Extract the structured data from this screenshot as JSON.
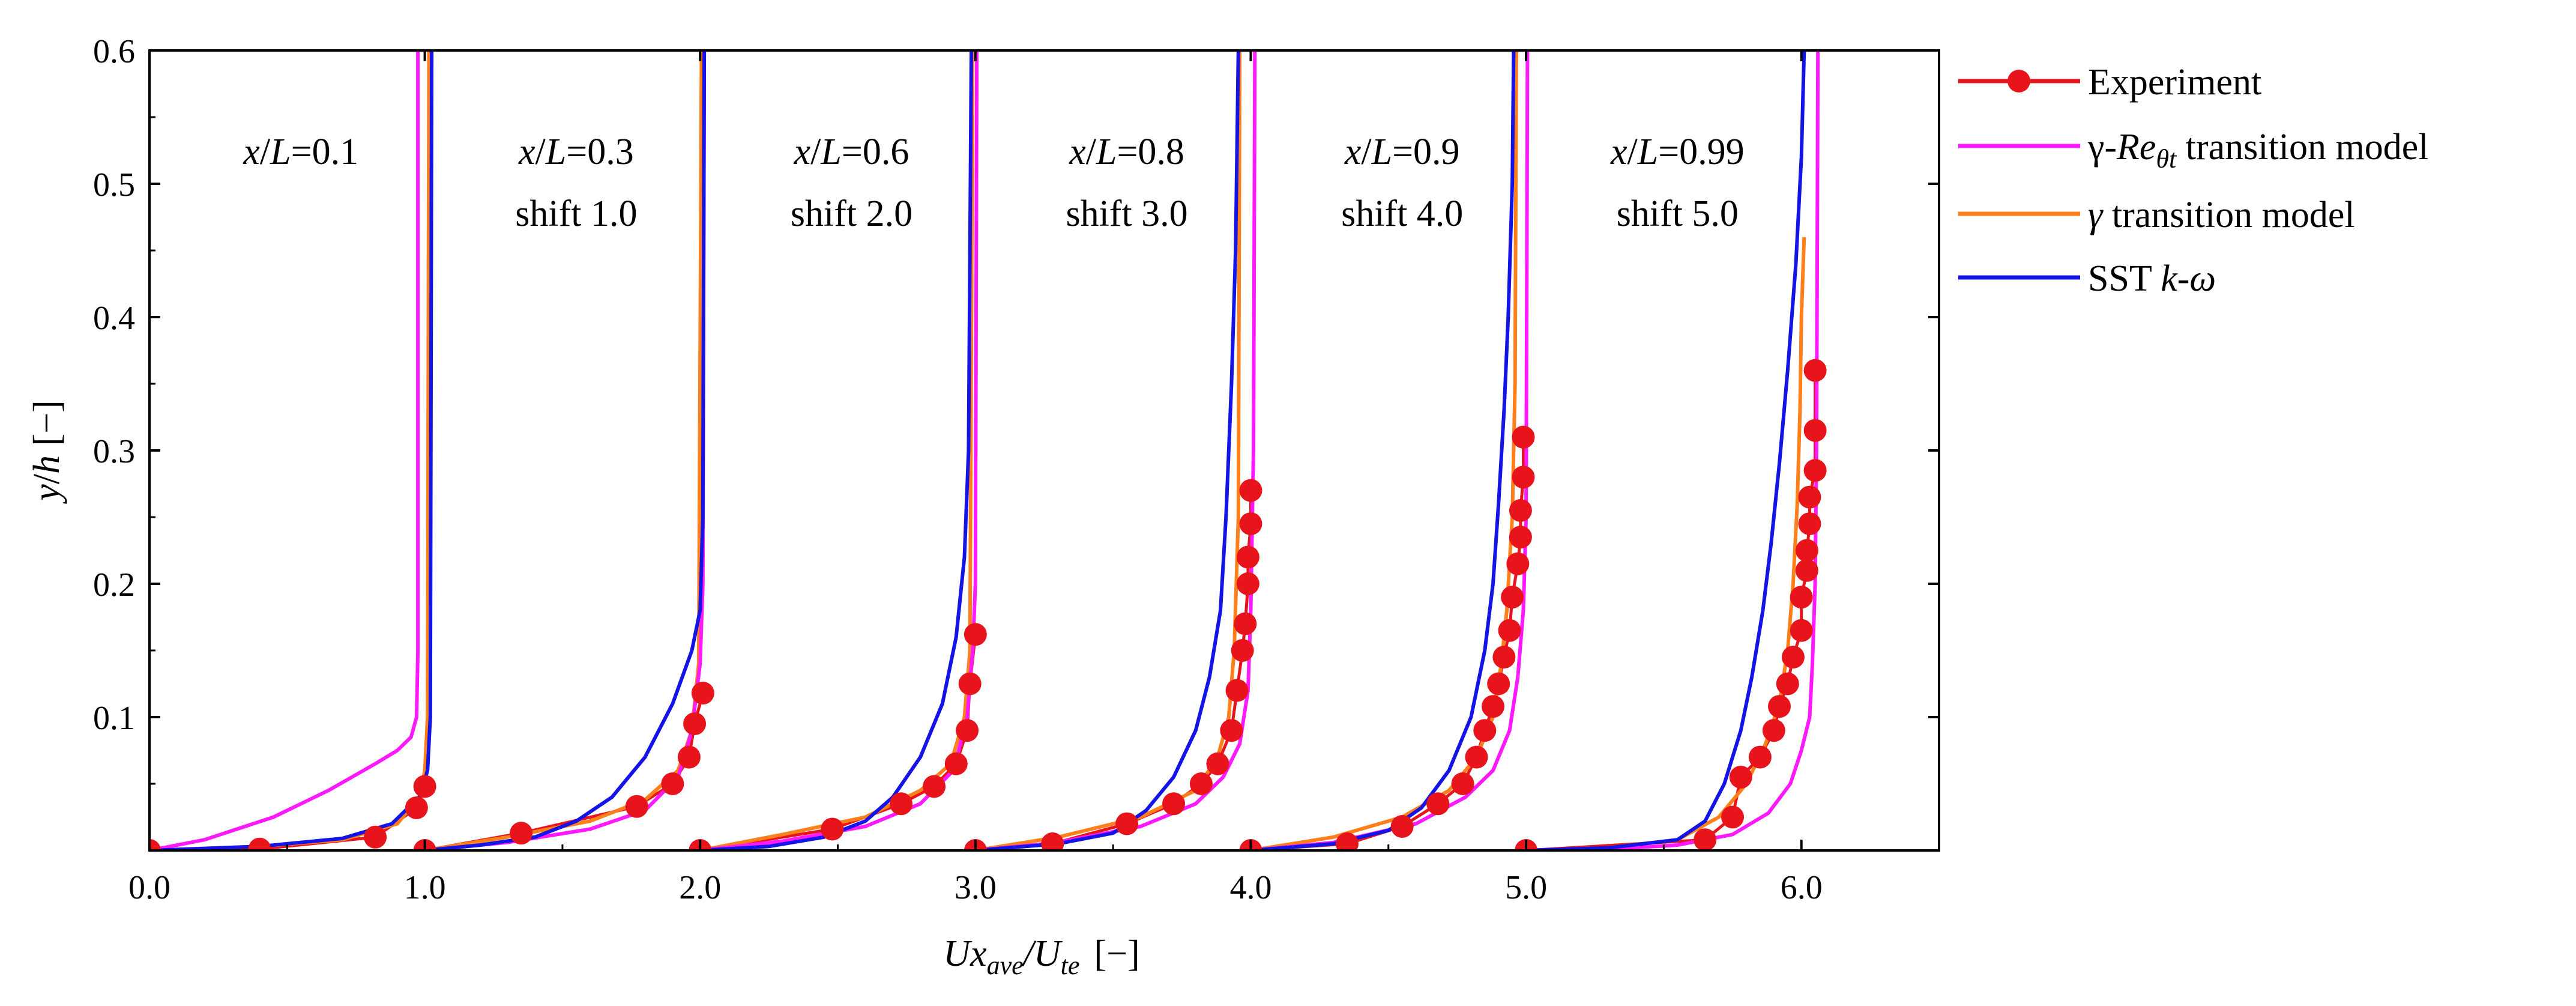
{
  "chart_data": {
    "type": "line",
    "xlabel": {
      "main": "Ux",
      "sub1": "ave",
      "sep": "/U",
      "sub2": "te",
      "unit": "[−]"
    },
    "ylabel": {
      "a": "y",
      "sep": "/",
      "b": "h",
      "unit": " [−]"
    },
    "xlim": [
      0,
      6.5
    ],
    "ylim": [
      0,
      0.6
    ],
    "x_ticks": [
      0.0,
      1.0,
      2.0,
      3.0,
      4.0,
      5.0,
      6.0
    ],
    "x_tick_labels": [
      "0.0",
      "1.0",
      "2.0",
      "3.0",
      "4.0",
      "5.0",
      "6.0"
    ],
    "y_ticks": [
      0.1,
      0.2,
      0.3,
      0.4,
      0.5,
      0.6
    ],
    "y_tick_labels": [
      "0.1",
      "0.2",
      "0.3",
      "0.4",
      "0.5",
      "0.6"
    ],
    "colors": {
      "experiment": "#e8141c",
      "gamma_re": "#ff19ff",
      "gamma": "#ff7f1a",
      "sst": "#1414e6"
    },
    "legend": {
      "position": "right",
      "entries": [
        {
          "key": "experiment",
          "label": "Experiment"
        },
        {
          "key": "gamma_re",
          "prefix": "γ-",
          "italic": "Re",
          "sub": "θt",
          "suffix": " transition model"
        },
        {
          "key": "gamma",
          "italic": "γ",
          "suffix": " transition model"
        },
        {
          "key": "sst",
          "prefix": "SST ",
          "italic": "k-ω",
          "suffix": ""
        }
      ]
    },
    "station_labels": [
      {
        "station": "x/L=0.1",
        "ratio": "0.1",
        "shift": ""
      },
      {
        "station": "x/L=0.3",
        "ratio": "0.3",
        "shift": "shift 1.0"
      },
      {
        "station": "x/L=0.6",
        "ratio": "0.6",
        "shift": "shift 2.0"
      },
      {
        "station": "x/L=0.8",
        "ratio": "0.8",
        "shift": "shift 3.0"
      },
      {
        "station": "x/L=0.9",
        "ratio": "0.9",
        "shift": "shift 4.0"
      },
      {
        "station": "x/L=0.99",
        "ratio": "0.99",
        "shift": "shift 5.0"
      }
    ],
    "stations": [
      {
        "shift": 0,
        "experiment": [
          [
            0,
            0
          ],
          [
            0.4,
            0.001
          ],
          [
            0.82,
            0.01
          ],
          [
            0.97,
            0.032
          ],
          [
            1.0,
            0.048
          ]
        ],
        "gamma_re": [
          [
            0,
            0
          ],
          [
            0.2,
            0.008
          ],
          [
            0.45,
            0.025
          ],
          [
            0.65,
            0.045
          ],
          [
            0.82,
            0.065
          ],
          [
            0.9,
            0.075
          ],
          [
            0.95,
            0.085
          ],
          [
            0.97,
            0.1
          ],
          [
            0.975,
            0.15
          ],
          [
            0.975,
            0.6
          ]
        ],
        "gamma": [
          [
            0,
            0
          ],
          [
            0.4,
            0.003
          ],
          [
            0.7,
            0.008
          ],
          [
            0.9,
            0.02
          ],
          [
            0.98,
            0.04
          ],
          [
            1.0,
            0.06
          ],
          [
            1.01,
            0.1
          ],
          [
            1.015,
            0.6
          ]
        ],
        "sst": [
          [
            0,
            0
          ],
          [
            0.4,
            0.003
          ],
          [
            0.7,
            0.009
          ],
          [
            0.88,
            0.02
          ],
          [
            0.98,
            0.04
          ],
          [
            1.01,
            0.06
          ],
          [
            1.02,
            0.1
          ],
          [
            1.025,
            0.6
          ]
        ]
      },
      {
        "shift": 1,
        "experiment": [
          [
            1.0,
            0
          ],
          [
            1.35,
            0.013
          ],
          [
            1.77,
            0.033
          ],
          [
            1.9,
            0.05
          ],
          [
            1.96,
            0.07
          ],
          [
            1.98,
            0.095
          ],
          [
            2.01,
            0.118
          ]
        ],
        "gamma_re": [
          [
            1.0,
            0
          ],
          [
            1.3,
            0.006
          ],
          [
            1.6,
            0.016
          ],
          [
            1.8,
            0.03
          ],
          [
            1.92,
            0.055
          ],
          [
            1.97,
            0.09
          ],
          [
            2.0,
            0.14
          ],
          [
            2.01,
            0.2
          ],
          [
            2.015,
            0.6
          ]
        ],
        "gamma": [
          [
            1.0,
            0
          ],
          [
            1.3,
            0.01
          ],
          [
            1.6,
            0.022
          ],
          [
            1.8,
            0.038
          ],
          [
            1.92,
            0.06
          ],
          [
            1.97,
            0.09
          ],
          [
            1.995,
            0.14
          ],
          [
            2.005,
            0.6
          ]
        ],
        "sst": [
          [
            1.0,
            0
          ],
          [
            1.2,
            0.004
          ],
          [
            1.4,
            0.01
          ],
          [
            1.55,
            0.022
          ],
          [
            1.68,
            0.04
          ],
          [
            1.8,
            0.07
          ],
          [
            1.9,
            0.11
          ],
          [
            1.97,
            0.15
          ],
          [
            2.0,
            0.18
          ],
          [
            2.01,
            0.25
          ],
          [
            2.015,
            0.6
          ]
        ]
      },
      {
        "shift": 2,
        "experiment": [
          [
            2.0,
            0
          ],
          [
            2.48,
            0.016
          ],
          [
            2.73,
            0.035
          ],
          [
            2.85,
            0.048
          ],
          [
            2.93,
            0.065
          ],
          [
            2.97,
            0.09
          ],
          [
            2.98,
            0.125
          ],
          [
            3.0,
            0.162
          ]
        ],
        "gamma_re": [
          [
            2.0,
            0
          ],
          [
            2.3,
            0.007
          ],
          [
            2.6,
            0.018
          ],
          [
            2.8,
            0.035
          ],
          [
            2.92,
            0.06
          ],
          [
            2.97,
            0.1
          ],
          [
            2.99,
            0.15
          ],
          [
            3.0,
            0.2
          ],
          [
            3.005,
            0.6
          ]
        ],
        "gamma": [
          [
            2.0,
            0
          ],
          [
            2.3,
            0.012
          ],
          [
            2.6,
            0.025
          ],
          [
            2.8,
            0.045
          ],
          [
            2.91,
            0.065
          ],
          [
            2.96,
            0.1
          ],
          [
            2.98,
            0.15
          ],
          [
            2.99,
            0.6
          ]
        ],
        "sst": [
          [
            2.0,
            0
          ],
          [
            2.25,
            0.003
          ],
          [
            2.45,
            0.01
          ],
          [
            2.6,
            0.022
          ],
          [
            2.7,
            0.04
          ],
          [
            2.8,
            0.07
          ],
          [
            2.88,
            0.11
          ],
          [
            2.93,
            0.16
          ],
          [
            2.96,
            0.22
          ],
          [
            2.975,
            0.3
          ],
          [
            2.985,
            0.6
          ]
        ]
      },
      {
        "shift": 3,
        "experiment": [
          [
            3.0,
            0
          ],
          [
            3.28,
            0.005
          ],
          [
            3.55,
            0.02
          ],
          [
            3.72,
            0.035
          ],
          [
            3.82,
            0.05
          ],
          [
            3.88,
            0.065
          ],
          [
            3.93,
            0.09
          ],
          [
            3.95,
            0.12
          ],
          [
            3.97,
            0.15
          ],
          [
            3.98,
            0.17
          ],
          [
            3.99,
            0.2
          ],
          [
            3.99,
            0.22
          ],
          [
            4.0,
            0.245
          ],
          [
            4.0,
            0.27
          ]
        ],
        "gamma_re": [
          [
            3.0,
            0
          ],
          [
            3.3,
            0.006
          ],
          [
            3.6,
            0.018
          ],
          [
            3.8,
            0.035
          ],
          [
            3.9,
            0.055
          ],
          [
            3.96,
            0.08
          ],
          [
            3.99,
            0.12
          ],
          [
            4.0,
            0.18
          ],
          [
            4.01,
            0.3
          ],
          [
            4.015,
            0.6
          ]
        ],
        "gamma": [
          [
            3.0,
            0
          ],
          [
            3.3,
            0.01
          ],
          [
            3.6,
            0.025
          ],
          [
            3.8,
            0.045
          ],
          [
            3.88,
            0.07
          ],
          [
            3.92,
            0.1
          ],
          [
            3.94,
            0.15
          ],
          [
            3.955,
            0.25
          ],
          [
            3.96,
            0.6
          ]
        ],
        "sst": [
          [
            3.0,
            0
          ],
          [
            3.3,
            0.005
          ],
          [
            3.5,
            0.013
          ],
          [
            3.62,
            0.03
          ],
          [
            3.72,
            0.055
          ],
          [
            3.8,
            0.09
          ],
          [
            3.85,
            0.13
          ],
          [
            3.89,
            0.18
          ],
          [
            3.91,
            0.25
          ],
          [
            3.93,
            0.35
          ],
          [
            3.945,
            0.45
          ],
          [
            3.955,
            0.6
          ]
        ]
      },
      {
        "shift": 4,
        "experiment": [
          [
            4.0,
            0
          ],
          [
            4.35,
            0.005
          ],
          [
            4.55,
            0.018
          ],
          [
            4.68,
            0.035
          ],
          [
            4.77,
            0.05
          ],
          [
            4.82,
            0.07
          ],
          [
            4.85,
            0.09
          ],
          [
            4.88,
            0.108
          ],
          [
            4.9,
            0.125
          ],
          [
            4.92,
            0.145
          ],
          [
            4.94,
            0.165
          ],
          [
            4.95,
            0.19
          ],
          [
            4.97,
            0.215
          ],
          [
            4.98,
            0.235
          ],
          [
            4.98,
            0.255
          ],
          [
            4.99,
            0.28
          ],
          [
            4.99,
            0.31
          ]
        ],
        "gamma_re": [
          [
            4.0,
            0
          ],
          [
            4.3,
            0.006
          ],
          [
            4.6,
            0.02
          ],
          [
            4.78,
            0.04
          ],
          [
            4.88,
            0.06
          ],
          [
            4.94,
            0.09
          ],
          [
            4.97,
            0.13
          ],
          [
            4.99,
            0.18
          ],
          [
            5.0,
            0.25
          ],
          [
            5.005,
            0.6
          ]
        ],
        "gamma": [
          [
            4.0,
            0
          ],
          [
            4.3,
            0.01
          ],
          [
            4.55,
            0.025
          ],
          [
            4.72,
            0.045
          ],
          [
            4.82,
            0.07
          ],
          [
            4.88,
            0.1
          ],
          [
            4.91,
            0.14
          ],
          [
            4.93,
            0.18
          ],
          [
            4.95,
            0.25
          ],
          [
            4.96,
            0.35
          ],
          [
            4.965,
            0.6
          ]
        ],
        "sst": [
          [
            4.0,
            0
          ],
          [
            4.3,
            0.005
          ],
          [
            4.5,
            0.015
          ],
          [
            4.62,
            0.032
          ],
          [
            4.72,
            0.06
          ],
          [
            4.8,
            0.1
          ],
          [
            4.85,
            0.15
          ],
          [
            4.88,
            0.2
          ],
          [
            4.9,
            0.26
          ],
          [
            4.92,
            0.33
          ],
          [
            4.935,
            0.4
          ],
          [
            4.95,
            0.5
          ],
          [
            4.955,
            0.6
          ]
        ]
      },
      {
        "shift": 5,
        "experiment": [
          [
            5.0,
            0
          ],
          [
            5.65,
            0.008
          ],
          [
            5.75,
            0.025
          ],
          [
            5.78,
            0.055
          ],
          [
            5.85,
            0.07
          ],
          [
            5.9,
            0.09
          ],
          [
            5.92,
            0.108
          ],
          [
            5.95,
            0.125
          ],
          [
            5.97,
            0.145
          ],
          [
            6.0,
            0.165
          ],
          [
            6.0,
            0.19
          ],
          [
            6.02,
            0.21
          ],
          [
            6.02,
            0.225
          ],
          [
            6.03,
            0.245
          ],
          [
            6.03,
            0.265
          ],
          [
            6.05,
            0.285
          ],
          [
            6.05,
            0.315
          ],
          [
            6.05,
            0.36
          ]
        ],
        "gamma_re": [
          [
            5.0,
            0
          ],
          [
            5.3,
            0.001
          ],
          [
            5.55,
            0.004
          ],
          [
            5.75,
            0.012
          ],
          [
            5.88,
            0.028
          ],
          [
            5.96,
            0.05
          ],
          [
            6.0,
            0.075
          ],
          [
            6.03,
            0.1
          ],
          [
            6.04,
            0.14
          ],
          [
            6.05,
            0.2
          ],
          [
            6.055,
            0.3
          ],
          [
            6.06,
            0.6
          ]
        ],
        "gamma": [
          [
            5.0,
            0
          ],
          [
            5.3,
            0.002
          ],
          [
            5.55,
            0.008
          ],
          [
            5.7,
            0.025
          ],
          [
            5.8,
            0.05
          ],
          [
            5.87,
            0.08
          ],
          [
            5.92,
            0.11
          ],
          [
            5.95,
            0.15
          ],
          [
            5.97,
            0.2
          ],
          [
            5.985,
            0.26
          ],
          [
            5.995,
            0.33
          ],
          [
            6.0,
            0.4
          ],
          [
            6.01,
            0.46
          ]
        ],
        "sst": [
          [
            5.0,
            0
          ],
          [
            5.3,
            0.002
          ],
          [
            5.55,
            0.008
          ],
          [
            5.65,
            0.022
          ],
          [
            5.72,
            0.05
          ],
          [
            5.78,
            0.09
          ],
          [
            5.82,
            0.13
          ],
          [
            5.86,
            0.18
          ],
          [
            5.89,
            0.23
          ],
          [
            5.92,
            0.29
          ],
          [
            5.95,
            0.36
          ],
          [
            5.98,
            0.44
          ],
          [
            6.0,
            0.52
          ],
          [
            6.01,
            0.6
          ]
        ]
      }
    ]
  }
}
